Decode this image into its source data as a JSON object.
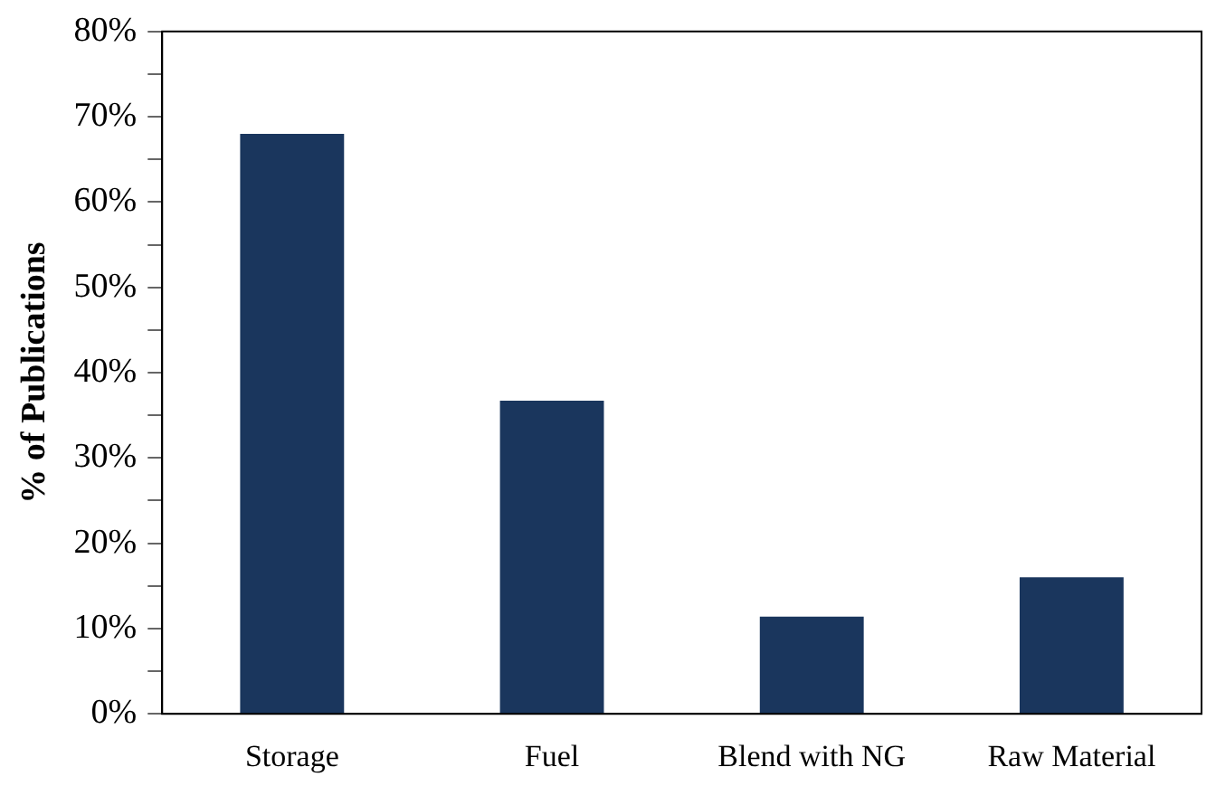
{
  "chart_data": {
    "type": "bar",
    "ylabel": "% of Publications",
    "categories": [
      "Storage",
      "Fuel",
      "Blend with NG",
      "Raw Material"
    ],
    "values": [
      68,
      36.7,
      11.4,
      16
    ],
    "color": "#1a365d",
    "ylim": [
      0,
      80
    ],
    "yticks": [
      {
        "value": 0,
        "label": "0%"
      },
      {
        "value": 5,
        "label": null
      },
      {
        "value": 10,
        "label": "10%"
      },
      {
        "value": 15,
        "label": null
      },
      {
        "value": 20,
        "label": "20%"
      },
      {
        "value": 25,
        "label": null
      },
      {
        "value": 30,
        "label": "30%"
      },
      {
        "value": 35,
        "label": null
      },
      {
        "value": 40,
        "label": "40%"
      },
      {
        "value": 45,
        "label": null
      },
      {
        "value": 50,
        "label": "50%"
      },
      {
        "value": 55,
        "label": null
      },
      {
        "value": 60,
        "label": "60%"
      },
      {
        "value": 65,
        "label": null
      },
      {
        "value": 70,
        "label": "70%"
      },
      {
        "value": 75,
        "label": null
      },
      {
        "value": 80,
        "label": "80%"
      }
    ],
    "grid": false,
    "legend": false
  }
}
